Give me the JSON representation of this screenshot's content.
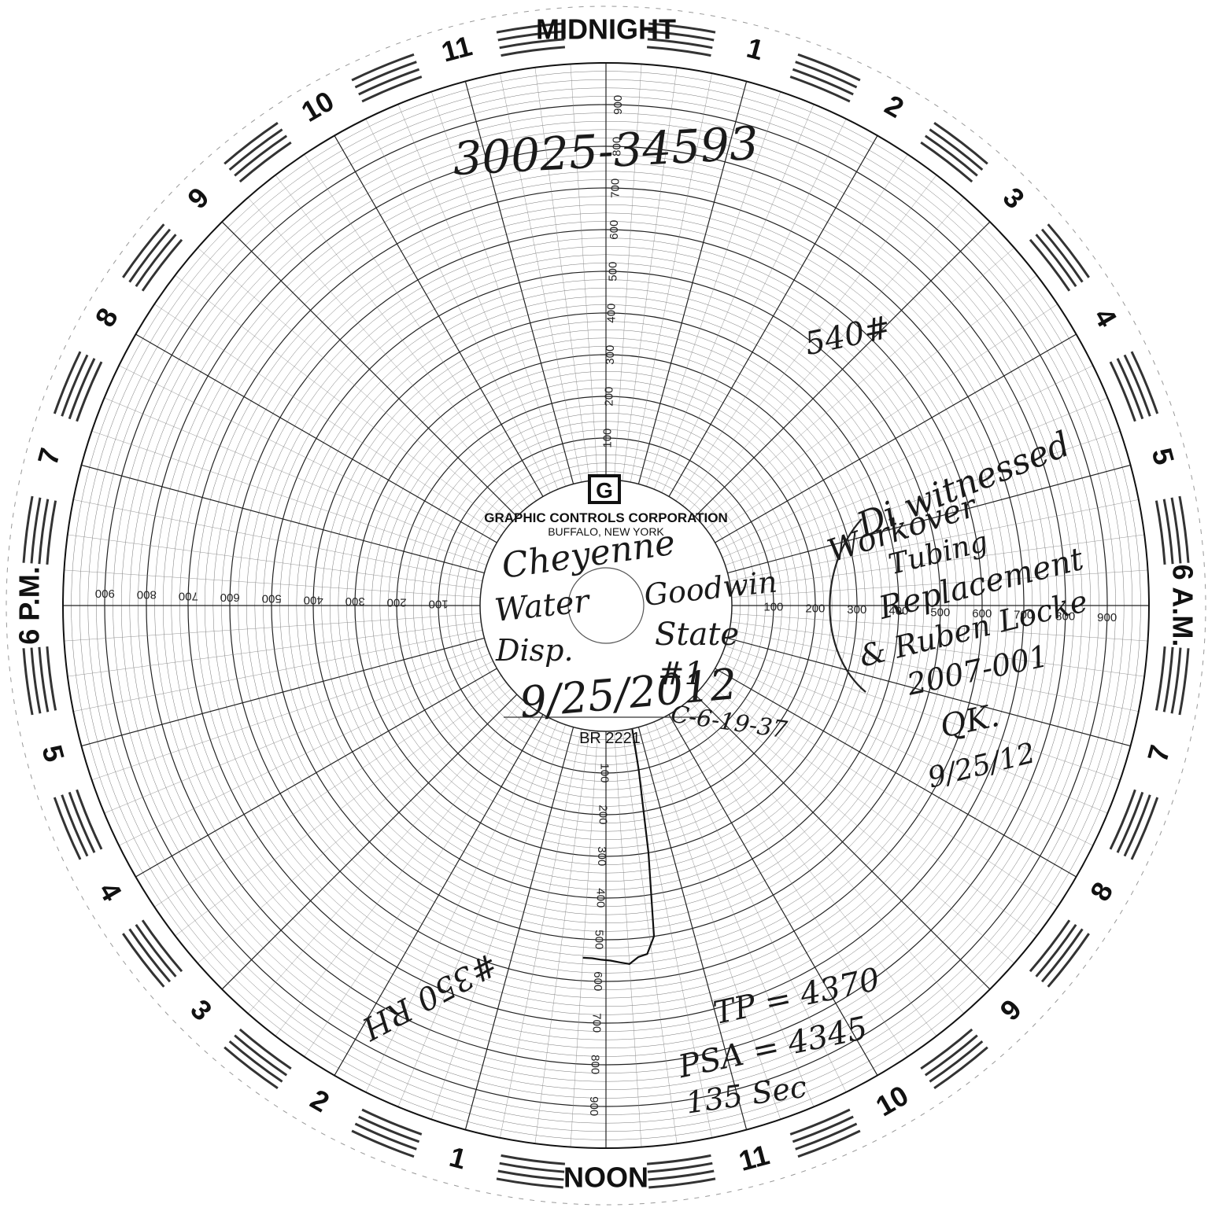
{
  "chart_data": {
    "type": "circular-recorder",
    "hour_labels": [
      "MIDNIGHT",
      "1",
      "2",
      "3",
      "4",
      "5",
      "6 A.M.",
      "7",
      "8",
      "9",
      "10",
      "11",
      "NOON",
      "1",
      "2",
      "3",
      "4",
      "5",
      "6 P.M.",
      "7",
      "8",
      "9",
      "10",
      "11"
    ],
    "scale_range": [
      0,
      1000
    ],
    "scale_ticks": [
      "100",
      "200",
      "300",
      "400",
      "500",
      "600",
      "700",
      "800",
      "900"
    ],
    "grid": true,
    "series": [
      {
        "hour": [
          11.2,
          11.25,
          11.35,
          11.45,
          11.55,
          11.65,
          11.75,
          11.85,
          11.95,
          12.05,
          12.15,
          12.25
        ],
        "value": [
          0,
          100,
          300,
          500,
          540,
          545,
          560,
          555,
          550,
          548,
          545,
          545
        ]
      }
    ],
    "annotations": {
      "top_number": "30025-34593",
      "reading_mark": "540#",
      "pen_mark": "#350 RH"
    }
  },
  "center": {
    "brand": "GRAPHIC CONTROLS CORPORATION",
    "city": "BUFFALO, NEW YORK",
    "chart_no": "BR 2221",
    "logo_letter": "G"
  },
  "handwriting": {
    "left_block": [
      "Cheyenne",
      "Water",
      "Disp."
    ],
    "right_block": [
      "Goodwin",
      "State",
      "#1"
    ],
    "date": "9/25/2012",
    "code": "C-6-19-37",
    "right_notes": [
      "Di witnessed",
      "Workover",
      "Tubing",
      "Replacement",
      "& Ruben Locke",
      "2007-001",
      "QK.",
      "9/25/12"
    ],
    "bottom_notes": [
      "TP = 4370",
      "PSA = 4345",
      "135 Sec"
    ]
  }
}
